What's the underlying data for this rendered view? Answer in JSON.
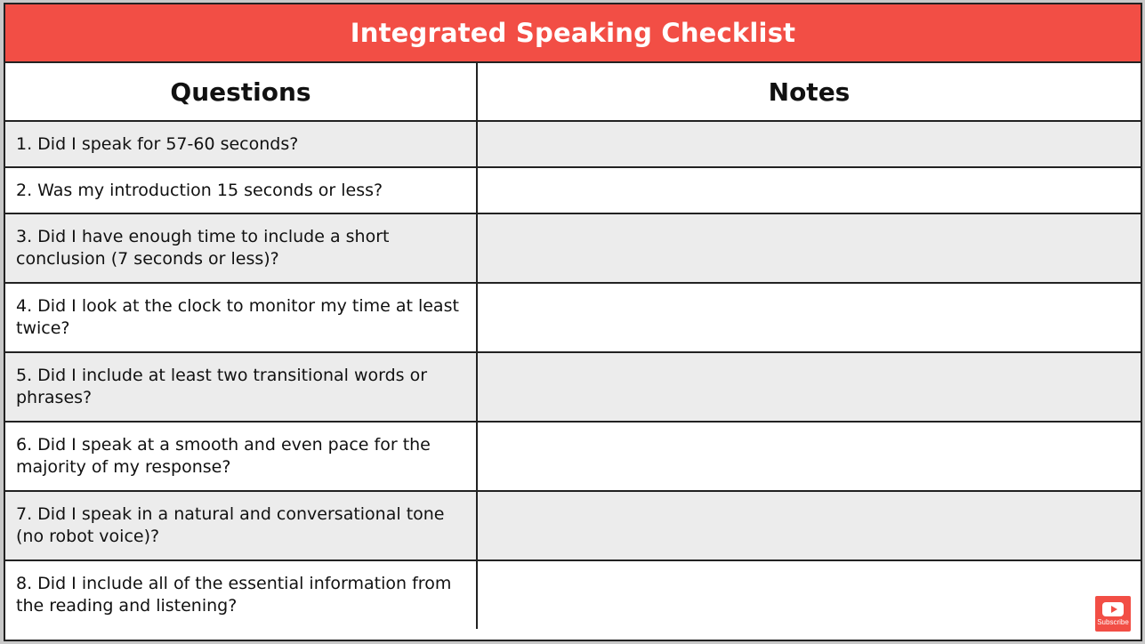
{
  "title": "Integrated Speaking Checklist",
  "columns": {
    "questions": "Questions",
    "notes": "Notes"
  },
  "rows": [
    {
      "question": "1. Did I speak for 57-60 seconds?",
      "notes": ""
    },
    {
      "question": "2. Was my introduction 15 seconds or less?",
      "notes": ""
    },
    {
      "question": "3. Did I have enough time to include a short conclusion (7 seconds or less)?",
      "notes": ""
    },
    {
      "question": "4. Did I look at the clock to monitor my time at least twice?",
      "notes": ""
    },
    {
      "question": "5. Did I include at least two transitional words or phrases?",
      "notes": ""
    },
    {
      "question": "6. Did I speak at a smooth and even pace for the majority of my response?",
      "notes": ""
    },
    {
      "question": "7. Did I speak in a natural and conversational tone (no robot voice)?",
      "notes": ""
    },
    {
      "question": "8. Did I include all of the essential information from the reading and listening?",
      "notes": ""
    }
  ],
  "subscribe": {
    "label": "Subscribe",
    "icon": "youtube-icon"
  },
  "colors": {
    "header": "#f24e45",
    "shaded_row": "#ececec"
  }
}
